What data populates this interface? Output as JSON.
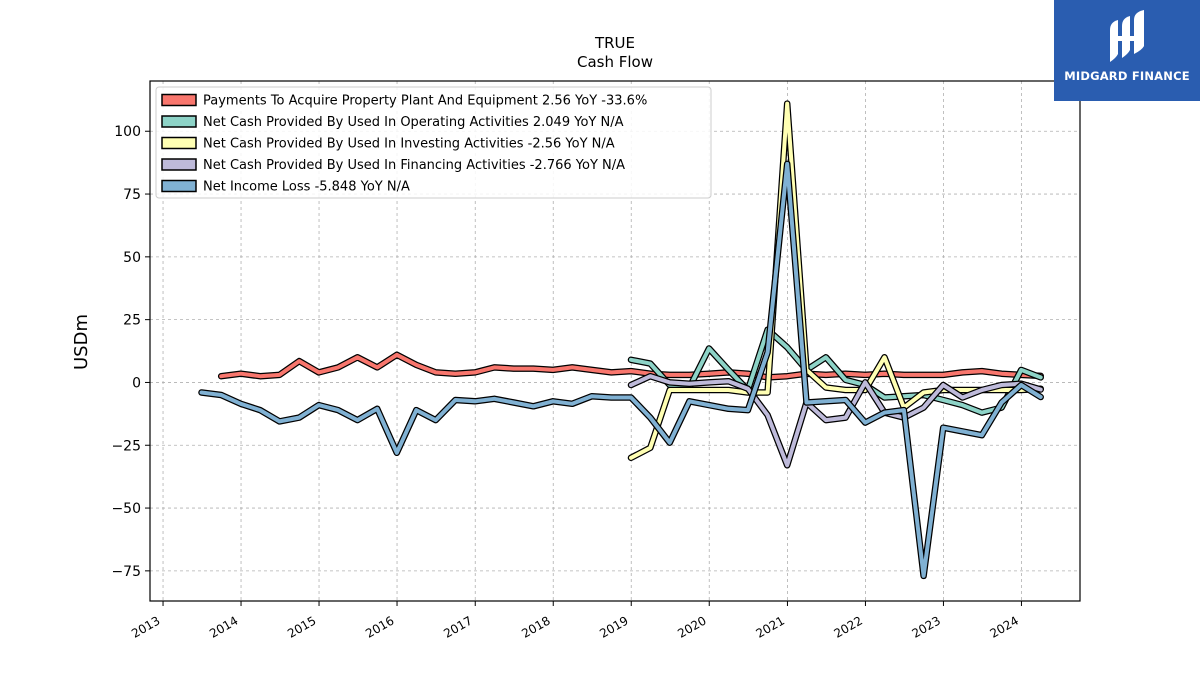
{
  "brand": {
    "name": "MIDGARD FINANCE",
    "icon": "midgard-logo-icon",
    "color": "#2a5db0"
  },
  "chart_data": {
    "type": "line",
    "title": "TRUE",
    "subtitle": "Cash Flow",
    "xlabel": "",
    "ylabel": "USDm",
    "xlim": [
      "2012-11-01",
      "2024-10-01"
    ],
    "ylim": [
      -87,
      120
    ],
    "y_ticks": [
      -75,
      -50,
      -25,
      0,
      25,
      50,
      75,
      100
    ],
    "y_tick_labels": [
      "−75",
      "−50",
      "−25",
      "0",
      "25",
      "50",
      "75",
      "100"
    ],
    "x_ticks": [
      "2013-01-01",
      "2014-01-01",
      "2015-01-01",
      "2016-01-01",
      "2017-01-01",
      "2018-01-01",
      "2019-01-01",
      "2020-01-01",
      "2021-01-01",
      "2022-01-01",
      "2023-01-01",
      "2024-01-01"
    ],
    "x_tick_labels": [
      "2013",
      "2014",
      "2015",
      "2016",
      "2017",
      "2018",
      "2019",
      "2020",
      "2021",
      "2022",
      "2023",
      "2024"
    ],
    "grid": true,
    "legend_position": "top-left",
    "series": [
      {
        "name": "Payments To Acquire Property Plant And Equipment  2.56 YoY -33.6%",
        "color": "#f8766d",
        "x": [
          "2013-09-30",
          "2013-12-31",
          "2014-03-31",
          "2014-06-30",
          "2014-09-30",
          "2014-12-31",
          "2015-03-31",
          "2015-06-30",
          "2015-09-30",
          "2015-12-31",
          "2016-03-31",
          "2016-06-30",
          "2016-09-30",
          "2016-12-31",
          "2017-03-31",
          "2017-06-30",
          "2017-09-30",
          "2017-12-31",
          "2018-03-31",
          "2018-06-30",
          "2018-09-30",
          "2018-12-31",
          "2019-03-31",
          "2019-06-30",
          "2019-09-30",
          "2019-12-31",
          "2020-03-31",
          "2020-06-30",
          "2020-09-30",
          "2020-12-31",
          "2021-03-31",
          "2021-06-30",
          "2021-09-30",
          "2021-12-31",
          "2022-03-31",
          "2022-06-30",
          "2022-09-30",
          "2022-12-31",
          "2023-03-31",
          "2023-06-30",
          "2023-09-30",
          "2023-12-31",
          "2024-03-31"
        ],
        "values": [
          2.5,
          3.5,
          2.5,
          3,
          8.5,
          4,
          6,
          10,
          6,
          11,
          7,
          4,
          3.5,
          4,
          6,
          5.5,
          5.5,
          5,
          6,
          5,
          4,
          4.5,
          3.5,
          3,
          3,
          3.5,
          4,
          3.5,
          2,
          2.5,
          3.5,
          3,
          3.5,
          3,
          3.5,
          3,
          3,
          3,
          4,
          4.5,
          3.5,
          3,
          2.6
        ]
      },
      {
        "name": "Net Cash Provided By Used In Operating Activities  2.049 YoY N/A",
        "color": "#8dd3c7",
        "x": [
          "2018-12-31",
          "2019-03-31",
          "2019-06-30",
          "2019-09-30",
          "2019-12-31",
          "2020-03-31",
          "2020-06-30",
          "2020-09-30",
          "2020-12-31",
          "2021-03-31",
          "2021-06-30",
          "2021-09-30",
          "2021-12-31",
          "2022-03-31",
          "2022-06-30",
          "2022-09-30",
          "2022-12-31",
          "2023-03-31",
          "2023-06-30",
          "2023-09-30",
          "2023-12-31",
          "2024-03-31"
        ],
        "values": [
          9,
          7.5,
          -1,
          -2,
          13.5,
          5,
          -3,
          21,
          14,
          5,
          10,
          1,
          -1,
          -6,
          -5.5,
          -5,
          -7,
          -9,
          -12,
          -10,
          5,
          2
        ]
      },
      {
        "name": "Net Cash Provided By Used In Investing Activities  -2.56 YoY N/A",
        "color": "#ffffb3",
        "x": [
          "2018-12-31",
          "2019-03-31",
          "2019-06-30",
          "2019-09-30",
          "2019-12-31",
          "2020-03-31",
          "2020-06-30",
          "2020-09-30",
          "2020-12-31",
          "2021-03-31",
          "2021-06-30",
          "2021-09-30",
          "2021-12-31",
          "2022-03-31",
          "2022-06-30",
          "2022-09-30",
          "2022-12-31",
          "2023-03-31",
          "2023-06-30",
          "2023-09-30",
          "2023-12-31",
          "2024-03-31"
        ],
        "values": [
          -30,
          -26,
          -3,
          -3,
          -3,
          -3,
          -4,
          -4,
          111,
          5,
          -2,
          -3,
          -3,
          10,
          -10,
          -4,
          -3,
          -3,
          -3,
          -3,
          -3,
          -2.5
        ]
      },
      {
        "name": "Net Cash Provided By Used In Financing Activities  -2.766 YoY N/A",
        "color": "#bebada",
        "x": [
          "2018-12-31",
          "2019-03-31",
          "2019-06-30",
          "2019-09-30",
          "2019-12-31",
          "2020-03-31",
          "2020-06-30",
          "2020-09-30",
          "2020-12-31",
          "2021-03-31",
          "2021-06-30",
          "2021-09-30",
          "2021-12-31",
          "2022-03-31",
          "2022-06-30",
          "2022-09-30",
          "2022-12-31",
          "2023-03-31",
          "2023-06-30",
          "2023-09-30",
          "2023-12-31",
          "2024-03-31"
        ],
        "values": [
          -1,
          2.5,
          0,
          -0.5,
          0,
          0.5,
          -2.5,
          -13,
          -33,
          -8,
          -15,
          -14,
          0,
          -12,
          -14,
          -10,
          -1,
          -6,
          -3,
          -1,
          -0.5,
          -2.8
        ]
      },
      {
        "name": "Net Income Loss  -5.848 YoY N/A",
        "color": "#80b1d3",
        "x": [
          "2013-06-30",
          "2013-09-30",
          "2013-12-31",
          "2014-03-31",
          "2014-06-30",
          "2014-09-30",
          "2014-12-31",
          "2015-03-31",
          "2015-06-30",
          "2015-09-30",
          "2015-12-31",
          "2016-03-31",
          "2016-06-30",
          "2016-09-30",
          "2016-12-31",
          "2017-03-31",
          "2017-06-30",
          "2017-09-30",
          "2017-12-31",
          "2018-03-31",
          "2018-06-30",
          "2018-09-30",
          "2018-12-31",
          "2019-03-31",
          "2019-06-30",
          "2019-09-30",
          "2019-12-31",
          "2020-03-31",
          "2020-06-30",
          "2020-09-30",
          "2020-12-31",
          "2021-03-31",
          "2021-06-30",
          "2021-09-30",
          "2021-12-31",
          "2022-03-31",
          "2022-06-30",
          "2022-09-30",
          "2022-12-31",
          "2023-03-31",
          "2023-06-30",
          "2023-09-30",
          "2023-12-31",
          "2024-03-31"
        ],
        "values": [
          -4,
          -5,
          -8.5,
          -11,
          -15.5,
          -14,
          -9,
          -11,
          -15,
          -10.5,
          -28,
          -11,
          -15,
          -7,
          -7.5,
          -6.5,
          -8,
          -9.5,
          -7.5,
          -8.5,
          -5.5,
          -6,
          -6,
          -14,
          -24,
          -7.5,
          -9,
          -10.5,
          -11,
          12,
          87,
          -8,
          -7.5,
          -7,
          -16,
          -12,
          -11,
          -77,
          -18,
          -19.5,
          -21,
          -8,
          -1,
          -5.8
        ]
      }
    ]
  }
}
